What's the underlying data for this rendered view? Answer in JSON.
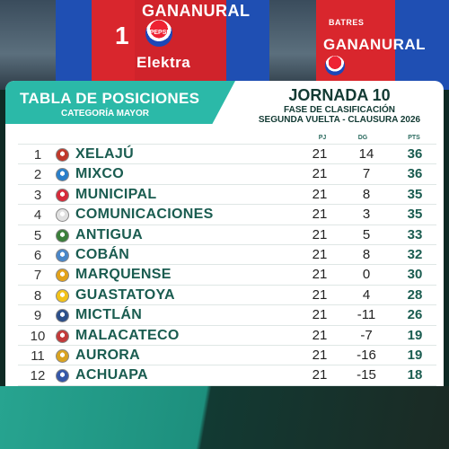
{
  "photo": {
    "left_sponsor": "GANANURAL",
    "left_sponsor2": "Elektra",
    "left_number": "1",
    "right_sponsor": "GANANURAL",
    "right_sponsor_top": "BATRES",
    "pepsi": "PEPSI"
  },
  "header": {
    "title": "TABLA DE POSICIONES",
    "subtitle": "CATEGORÍA MAYOR",
    "jornada": "JORNADA 10",
    "fase": "FASE DE CLASIFICACIÓN",
    "vuelta": "SEGUNDA VUELTA - CLAUSURA 2026"
  },
  "columns": {
    "pj": "PJ",
    "dg": "DG",
    "pts": "PTS"
  },
  "colors": {
    "accent": "#2bb9a8",
    "team_text": "#1a5c50"
  },
  "standings": [
    {
      "pos": "1",
      "team": "XELAJÚ",
      "pj": "21",
      "dg": "14",
      "pts": "36",
      "crest": "#c0392b"
    },
    {
      "pos": "2",
      "team": "MIXCO",
      "pj": "21",
      "dg": "7",
      "pts": "36",
      "crest": "#2a7fc9"
    },
    {
      "pos": "3",
      "team": "MUNICIPAL",
      "pj": "21",
      "dg": "8",
      "pts": "35",
      "crest": "#d52b3a"
    },
    {
      "pos": "4",
      "team": "COMUNICACIONES",
      "pj": "21",
      "dg": "3",
      "pts": "35",
      "crest": "#e0e0e0"
    },
    {
      "pos": "5",
      "team": "ANTIGUA",
      "pj": "21",
      "dg": "5",
      "pts": "33",
      "crest": "#3b7f3b"
    },
    {
      "pos": "6",
      "team": "COBÁN",
      "pj": "21",
      "dg": "8",
      "pts": "32",
      "crest": "#4a86c8"
    },
    {
      "pos": "7",
      "team": "MARQUENSE",
      "pj": "21",
      "dg": "0",
      "pts": "30",
      "crest": "#e2a21b"
    },
    {
      "pos": "8",
      "team": "GUASTATOYA",
      "pj": "21",
      "dg": "4",
      "pts": "28",
      "crest": "#f2c21a"
    },
    {
      "pos": "9",
      "team": "MICTLÁN",
      "pj": "21",
      "dg": "-11",
      "pts": "26",
      "crest": "#2c4f8a"
    },
    {
      "pos": "10",
      "team": "MALACATECO",
      "pj": "21",
      "dg": "-7",
      "pts": "19",
      "crest": "#c23a3a"
    },
    {
      "pos": "11",
      "team": "AURORA",
      "pj": "21",
      "dg": "-16",
      "pts": "19",
      "crest": "#d9a321"
    },
    {
      "pos": "12",
      "team": "ACHUAPA",
      "pj": "21",
      "dg": "-15",
      "pts": "18",
      "crest": "#3557a8"
    }
  ]
}
